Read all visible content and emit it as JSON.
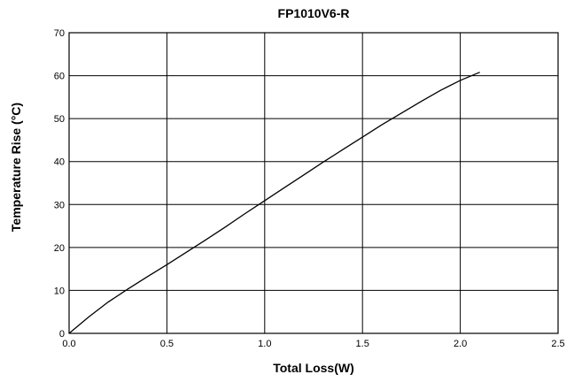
{
  "chart_data": {
    "type": "line",
    "title": "FP1010V6-R",
    "xlabel": "Total Loss(W)",
    "ylabel": "Temperature Rise (°C)",
    "xlim": [
      0,
      2.5
    ],
    "ylim": [
      0,
      70
    ],
    "xticks": [
      "0.0",
      "0.5",
      "1.0",
      "1.5",
      "2.0",
      "2.5"
    ],
    "yticks": [
      "0",
      "10",
      "20",
      "30",
      "40",
      "50",
      "60",
      "70"
    ],
    "grid": true,
    "series": [
      {
        "x": [
          0,
          0.1,
          0.2,
          0.3,
          0.4,
          0.5,
          0.6,
          0.7,
          0.8,
          0.9,
          1.0,
          1.1,
          1.2,
          1.3,
          1.4,
          1.5,
          1.6,
          1.7,
          1.8,
          1.9,
          2.0,
          2.1
        ],
        "y": [
          0,
          3.8,
          7.3,
          10.3,
          13.2,
          16.0,
          18.9,
          21.8,
          24.8,
          27.9,
          30.9,
          33.9,
          36.9,
          39.9,
          42.8,
          45.7,
          48.6,
          51.3,
          54.0,
          56.6,
          58.9,
          60.8
        ],
        "color": "#000000"
      }
    ]
  }
}
